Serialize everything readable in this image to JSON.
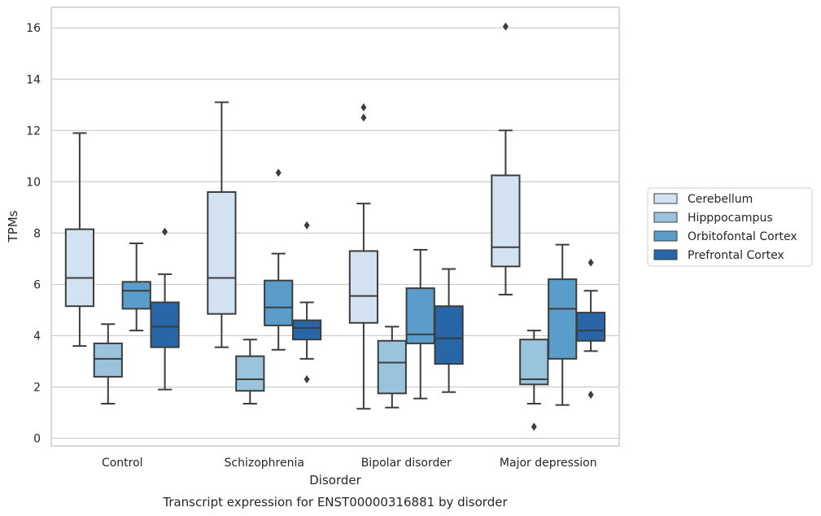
{
  "chart_data": {
    "type": "box",
    "caption": "Transcript expression for ENST00000316881 by disorder",
    "xlabel": "Disorder",
    "ylabel": "TPMs",
    "ylim": [
      -0.3,
      16.8
    ],
    "yticks": [
      0,
      2,
      4,
      6,
      8,
      10,
      12,
      14,
      16
    ],
    "grid": "horizontal",
    "legend_position": "right",
    "categories": [
      "Control",
      "Schizophrenia",
      "Bipolar disorder",
      "Major depression"
    ],
    "series": [
      {
        "name": "Cerebellum",
        "color": "#d3e2f1",
        "boxes": [
          {
            "whislo": 3.6,
            "q1": 5.15,
            "med": 6.25,
            "q3": 8.15,
            "whishi": 11.9,
            "fliers": []
          },
          {
            "whislo": 3.55,
            "q1": 4.85,
            "med": 6.25,
            "q3": 9.6,
            "whishi": 13.1,
            "fliers": []
          },
          {
            "whislo": 1.15,
            "q1": 4.5,
            "med": 5.55,
            "q3": 7.3,
            "whishi": 9.15,
            "fliers": [
              12.5,
              12.9
            ]
          },
          {
            "whislo": 5.6,
            "q1": 6.7,
            "med": 7.45,
            "q3": 10.25,
            "whishi": 12.0,
            "fliers": [
              16.05
            ]
          }
        ]
      },
      {
        "name": "Hipppocampus",
        "color": "#9ac3dd",
        "boxes": [
          {
            "whislo": 1.35,
            "q1": 2.4,
            "med": 3.1,
            "q3": 3.7,
            "whishi": 4.45,
            "fliers": []
          },
          {
            "whislo": 1.35,
            "q1": 1.85,
            "med": 2.3,
            "q3": 3.2,
            "whishi": 3.85,
            "fliers": []
          },
          {
            "whislo": 1.2,
            "q1": 1.75,
            "med": 2.95,
            "q3": 3.8,
            "whishi": 4.35,
            "fliers": []
          },
          {
            "whislo": 1.35,
            "q1": 2.1,
            "med": 2.3,
            "q3": 3.85,
            "whishi": 4.2,
            "fliers": [
              0.45
            ]
          }
        ]
      },
      {
        "name": "Orbitofontal Cortex",
        "color": "#5a9dca",
        "boxes": [
          {
            "whislo": 4.2,
            "q1": 5.05,
            "med": 5.75,
            "q3": 6.1,
            "whishi": 7.6,
            "fliers": []
          },
          {
            "whislo": 3.45,
            "q1": 4.4,
            "med": 5.1,
            "q3": 6.15,
            "whishi": 7.2,
            "fliers": [
              10.35
            ]
          },
          {
            "whislo": 1.55,
            "q1": 3.7,
            "med": 4.05,
            "q3": 5.85,
            "whishi": 7.35,
            "fliers": []
          },
          {
            "whislo": 1.3,
            "q1": 3.1,
            "med": 5.05,
            "q3": 6.2,
            "whishi": 7.55,
            "fliers": []
          }
        ]
      },
      {
        "name": "Prefrontal Cortex",
        "color": "#2866a8",
        "boxes": [
          {
            "whislo": 1.9,
            "q1": 3.55,
            "med": 4.35,
            "q3": 5.3,
            "whishi": 6.4,
            "fliers": [
              8.05
            ]
          },
          {
            "whislo": 3.1,
            "q1": 3.85,
            "med": 4.3,
            "q3": 4.6,
            "whishi": 5.3,
            "fliers": [
              2.3,
              8.3
            ]
          },
          {
            "whislo": 1.8,
            "q1": 2.9,
            "med": 3.9,
            "q3": 5.15,
            "whishi": 6.6,
            "fliers": []
          },
          {
            "whislo": 3.4,
            "q1": 3.8,
            "med": 4.2,
            "q3": 4.9,
            "whishi": 5.75,
            "fliers": [
              1.7,
              6.85
            ]
          }
        ]
      }
    ]
  }
}
